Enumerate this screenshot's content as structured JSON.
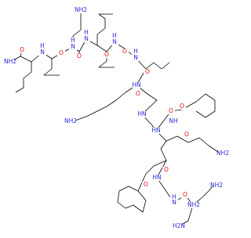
{
  "atom_labels": [
    "NH2",
    "O",
    "NH2",
    "H",
    "N",
    "O",
    "H",
    "N",
    "O",
    "H",
    "N",
    "O",
    "H",
    "N",
    "O",
    "H",
    "N",
    "O",
    "HN",
    "O",
    "NH2",
    "HN",
    "O",
    "NH",
    "O",
    "HN",
    "O",
    "NH2",
    "HN",
    "O",
    "H",
    "N",
    "O",
    "NH2",
    "H2N",
    "NH2",
    "O"
  ]
}
